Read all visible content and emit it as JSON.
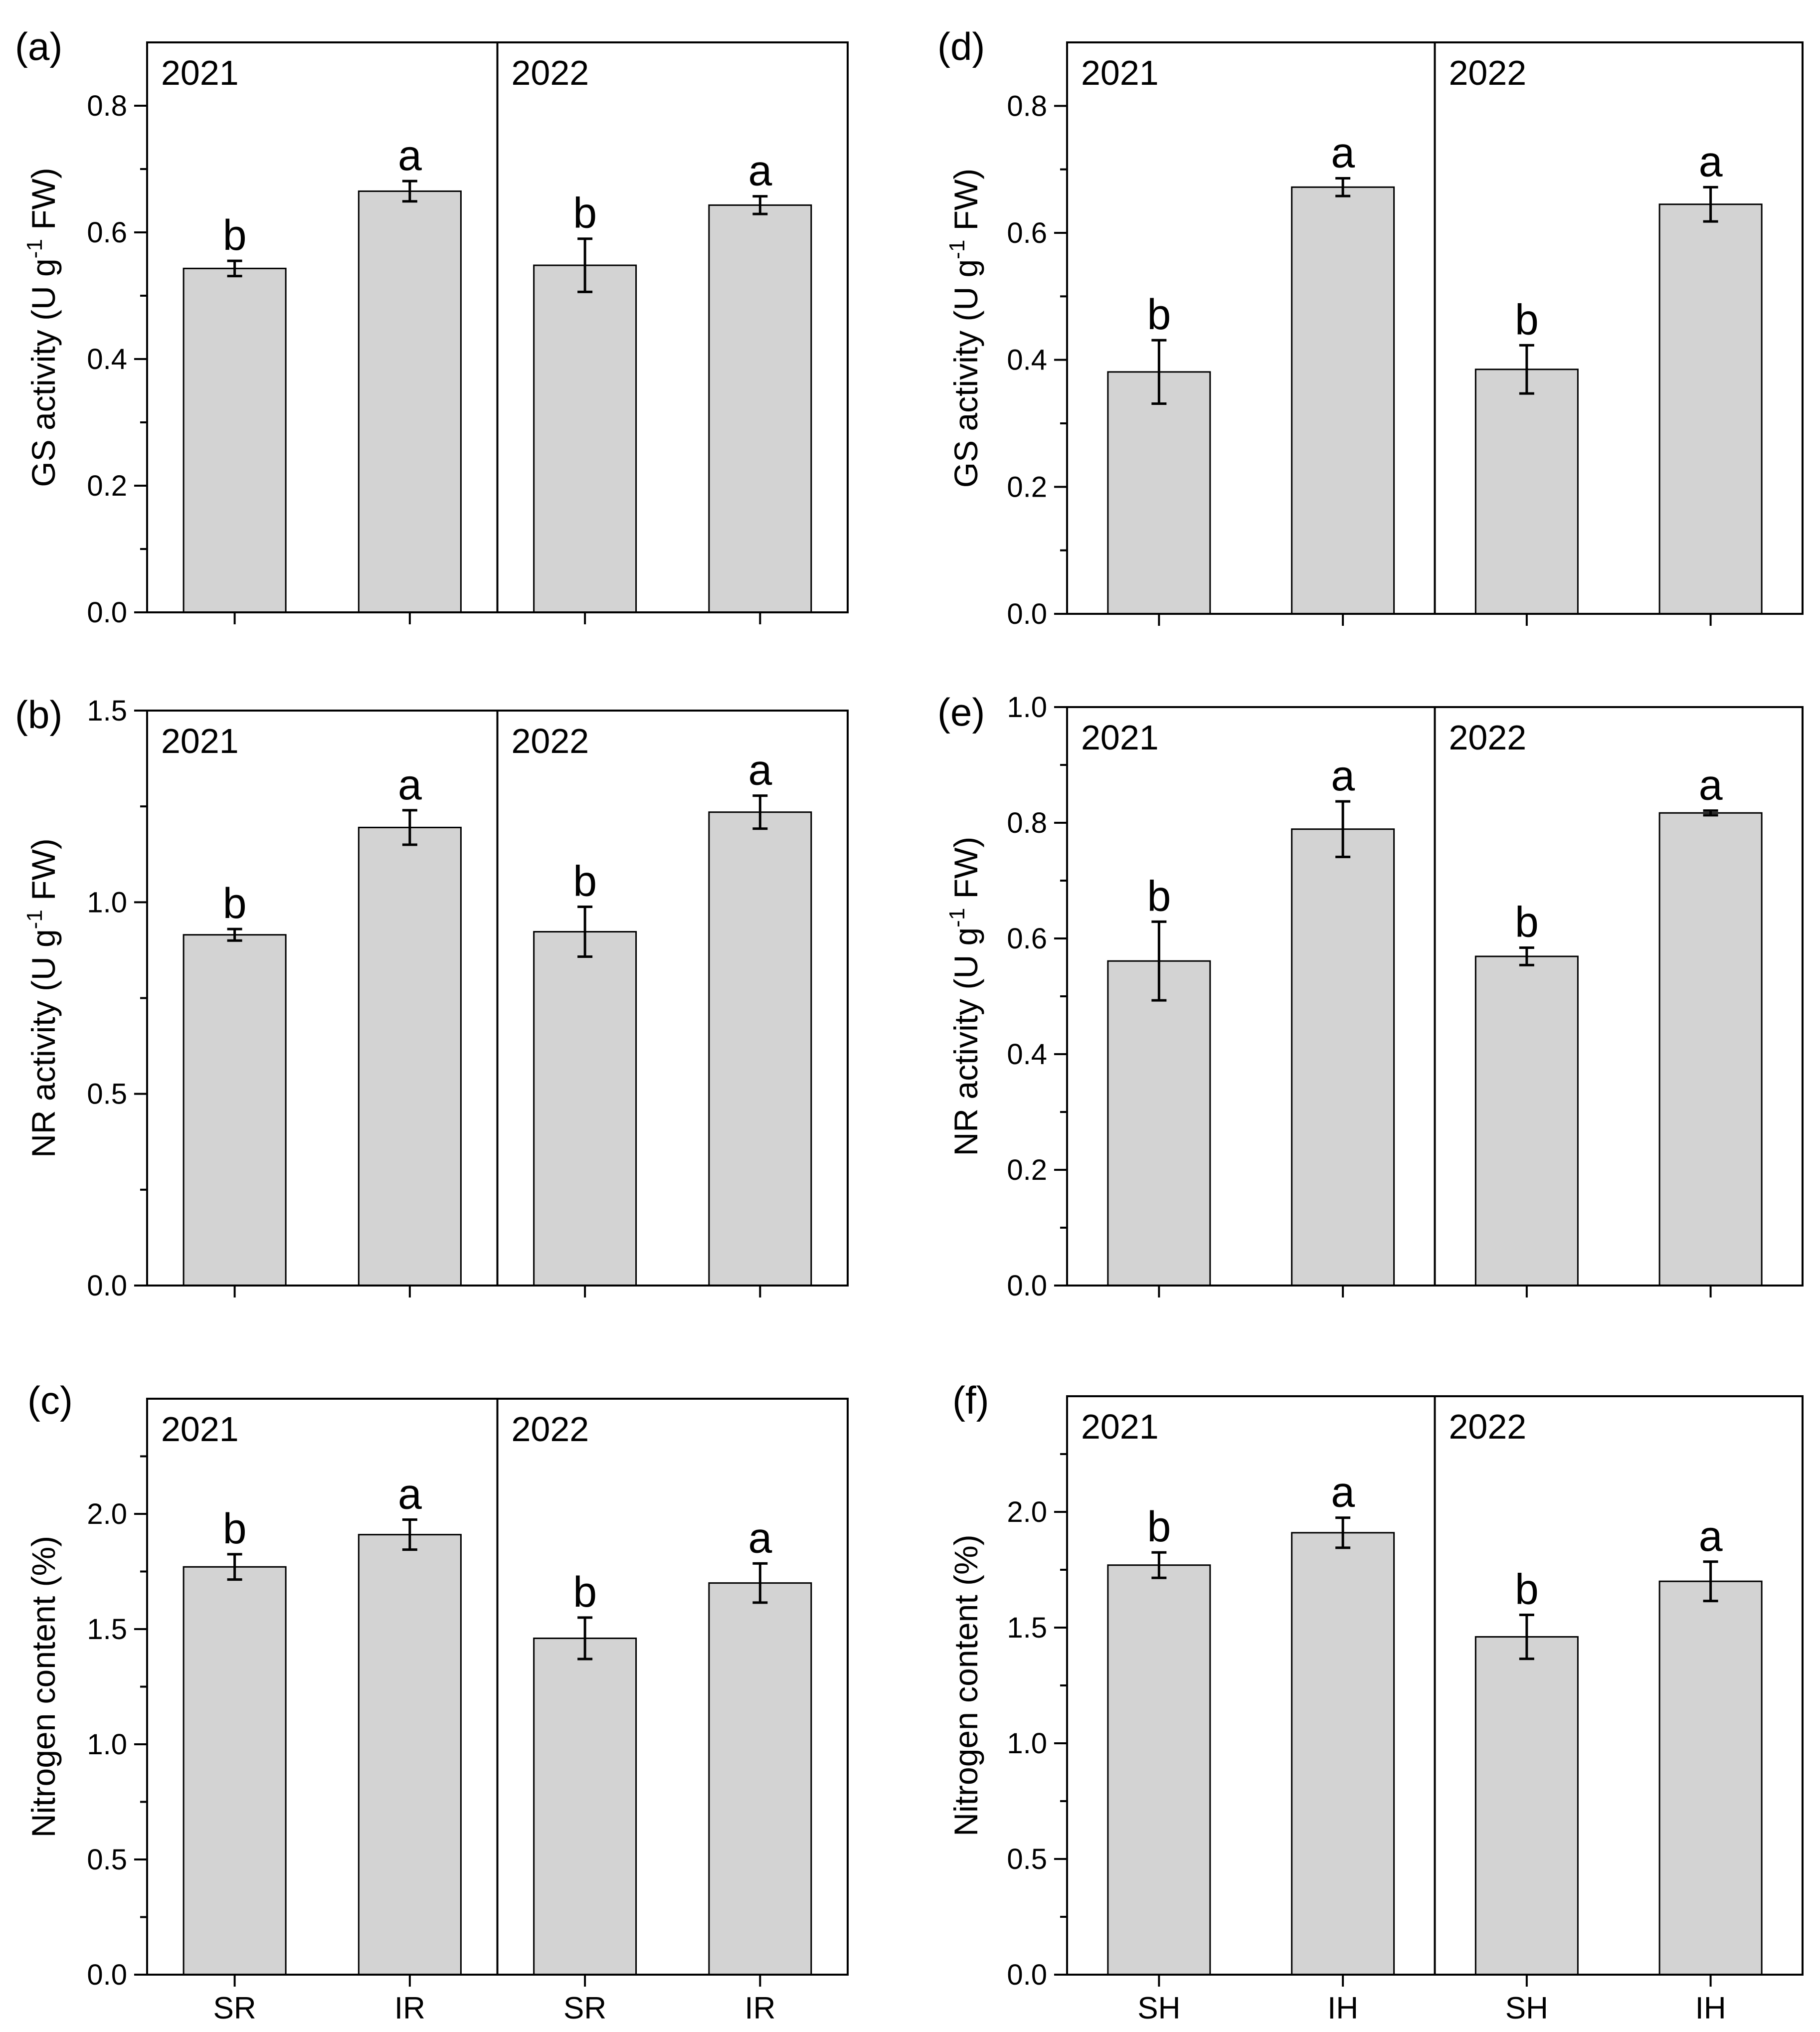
{
  "chart_data": [
    {
      "type": "bar",
      "panel": "(a)",
      "ylabel": "GS activity (U g-1 FW)",
      "ylabel_main": "GS activity",
      "ylabel_unit_pre": "(U g",
      "ylabel_sup": "-1",
      "ylabel_unit_post": " FW)",
      "ylim": [
        0,
        0.9
      ],
      "yticks": [
        0.0,
        0.2,
        0.4,
        0.6,
        0.8
      ],
      "ytick_labels": [
        "0.0",
        "0.2",
        "0.4",
        "0.6",
        "0.8"
      ],
      "groups": [
        "2021",
        "2022"
      ],
      "categories": [
        "SR",
        "IR",
        "SR",
        "IR"
      ],
      "show_xlabels": false,
      "values": [
        0.543,
        0.665,
        0.548,
        0.643
      ],
      "errors": [
        0.012,
        0.016,
        0.042,
        0.014
      ],
      "letters": [
        "b",
        "a",
        "b",
        "a"
      ]
    },
    {
      "type": "bar",
      "panel": "(b)",
      "ylabel": "NR activity (U g-1 FW)",
      "ylabel_main": "NR activity",
      "ylabel_unit_pre": "(U g",
      "ylabel_sup": "-1",
      "ylabel_unit_post": " FW)",
      "ylim": [
        0,
        1.5
      ],
      "yticks": [
        0.0,
        0.5,
        1.0,
        1.5
      ],
      "ytick_labels": [
        "0.0",
        "0.5",
        "1.0",
        "1.5"
      ],
      "groups": [
        "2021",
        "2022"
      ],
      "categories": [
        "SR",
        "IR",
        "SR",
        "IR"
      ],
      "show_xlabels": false,
      "values": [
        0.915,
        1.195,
        0.923,
        1.235
      ],
      "errors": [
        0.015,
        0.045,
        0.065,
        0.043
      ],
      "letters": [
        "b",
        "a",
        "b",
        "a"
      ]
    },
    {
      "type": "bar",
      "panel": "(c)",
      "ylabel": "Nitrogen content (%)",
      "ylabel_main": "Nitrogen content (%)",
      "ylabel_unit_pre": "",
      "ylabel_sup": "",
      "ylabel_unit_post": "",
      "ylim": [
        0,
        2.5
      ],
      "yticks": [
        0.0,
        0.5,
        1.0,
        1.5,
        2.0
      ],
      "ytick_labels": [
        "0.0",
        "0.5",
        "1.0",
        "1.5",
        "2.0"
      ],
      "groups": [
        "2021",
        "2022"
      ],
      "categories": [
        "SR",
        "IR",
        "SR",
        "IR"
      ],
      "show_xlabels": true,
      "values": [
        1.77,
        1.91,
        1.46,
        1.7
      ],
      "errors": [
        0.055,
        0.065,
        0.09,
        0.085
      ],
      "letters": [
        "b",
        "a",
        "b",
        "a"
      ]
    },
    {
      "type": "bar",
      "panel": "(d)",
      "ylabel": "GS activity (U g-1 FW)",
      "ylabel_main": "GS activity",
      "ylabel_unit_pre": "(U g",
      "ylabel_sup": "-1",
      "ylabel_unit_post": " FW)",
      "ylim": [
        0,
        0.9
      ],
      "yticks": [
        0.0,
        0.2,
        0.4,
        0.6,
        0.8
      ],
      "ytick_labels": [
        "0.0",
        "0.2",
        "0.4",
        "0.6",
        "0.8"
      ],
      "groups": [
        "2021",
        "2022"
      ],
      "categories": [
        "SH",
        "IH",
        "SH",
        "IH"
      ],
      "show_xlabels": false,
      "values": [
        0.381,
        0.672,
        0.385,
        0.645
      ],
      "errors": [
        0.05,
        0.014,
        0.038,
        0.027
      ],
      "letters": [
        "b",
        "a",
        "b",
        "a"
      ]
    },
    {
      "type": "bar",
      "panel": "(e)",
      "ylabel": "NR activity (U g-1 FW)",
      "ylabel_main": "NR activity",
      "ylabel_unit_pre": "(U g",
      "ylabel_sup": "-1",
      "ylabel_unit_post": " FW)",
      "ylim": [
        0,
        1.0
      ],
      "yticks": [
        0.0,
        0.2,
        0.4,
        0.6,
        0.8,
        1.0
      ],
      "ytick_labels": [
        "0.0",
        "0.2",
        "0.4",
        "0.6",
        "0.8",
        "1.0"
      ],
      "groups": [
        "2021",
        "2022"
      ],
      "categories": [
        "SH",
        "IH",
        "SH",
        "IH"
      ],
      "show_xlabels": false,
      "values": [
        0.561,
        0.789,
        0.569,
        0.817
      ],
      "errors": [
        0.068,
        0.048,
        0.015,
        0.004
      ],
      "letters": [
        "b",
        "a",
        "b",
        "a"
      ]
    },
    {
      "type": "bar",
      "panel": "(f)",
      "ylabel": "Nitrogen content (%)",
      "ylabel_main": "Nitrogen content (%)",
      "ylabel_unit_pre": "",
      "ylabel_sup": "",
      "ylabel_unit_post": "",
      "ylim": [
        0,
        2.5
      ],
      "yticks": [
        0.0,
        0.5,
        1.0,
        1.5,
        2.0
      ],
      "ytick_labels": [
        "0.0",
        "0.5",
        "1.0",
        "1.5",
        "2.0"
      ],
      "groups": [
        "2021",
        "2022"
      ],
      "categories": [
        "SH",
        "IH",
        "SH",
        "IH"
      ],
      "show_xlabels": true,
      "values": [
        1.77,
        1.91,
        1.46,
        1.7
      ],
      "errors": [
        0.055,
        0.065,
        0.095,
        0.085
      ],
      "letters": [
        "b",
        "a",
        "b",
        "a"
      ]
    }
  ]
}
